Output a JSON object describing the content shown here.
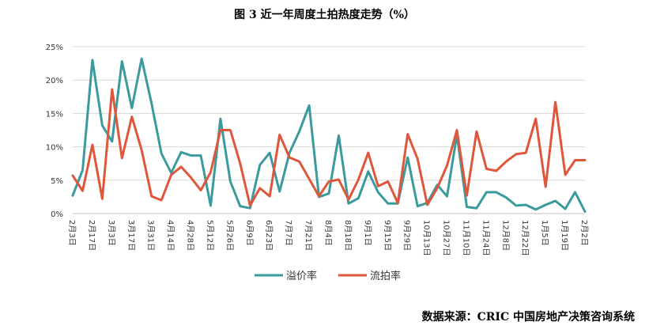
{
  "chart_data": {
    "type": "line",
    "title": "图 3 近一年周度土拍热度走势（%）",
    "xlabel": "",
    "ylabel": "",
    "ylim": [
      0,
      25
    ],
    "yticks": [
      "0%",
      "5%",
      "10%",
      "15%",
      "20%",
      "25%"
    ],
    "x_tick_labels": [
      "2月3日",
      "2月17日",
      "3月3日",
      "3月17日",
      "3月31日",
      "4月14日",
      "4月28日",
      "5月12日",
      "5月26日",
      "6月9日",
      "6月23日",
      "7月7日",
      "7月21日",
      "8月4日",
      "8月18日",
      "9月1日",
      "9月15日",
      "9月29日",
      "10月13日",
      "10月27日",
      "11月10日",
      "11月24日",
      "12月8日",
      "12月22日",
      "1月5日",
      "1月19日",
      "2月2日"
    ],
    "grid": true,
    "legend": "bottom-center",
    "series": [
      {
        "name": "溢价率",
        "color": "#3a9a9c",
        "values": [
          2.7,
          6.5,
          23.0,
          13.2,
          10.8,
          22.8,
          15.8,
          23.2,
          16.5,
          9.0,
          6.1,
          9.2,
          8.7,
          8.7,
          1.2,
          14.2,
          4.8,
          1.1,
          0.8,
          7.3,
          9.1,
          3.3,
          9.1,
          12.3,
          16.2,
          2.5,
          3.0,
          11.7,
          1.5,
          2.3,
          6.3,
          3.2,
          1.5,
          1.5,
          8.4,
          1.1,
          1.6,
          4.3,
          2.6,
          11.8,
          1.0,
          0.8,
          3.2,
          3.2,
          2.4,
          1.2,
          1.3,
          0.6,
          1.3,
          1.9,
          0.7,
          3.2,
          0.3
        ]
      },
      {
        "name": "流拍率",
        "color": "#e0563b",
        "values": [
          5.7,
          3.4,
          10.3,
          2.2,
          18.6,
          8.3,
          14.5,
          9.5,
          2.6,
          2.0,
          5.8,
          7.0,
          5.4,
          3.5,
          6.2,
          12.5,
          12.5,
          7.5,
          1.2,
          3.8,
          2.6,
          11.8,
          8.4,
          7.8,
          5.2,
          2.6,
          4.8,
          5.1,
          2.1,
          5.1,
          9.1,
          4.1,
          4.8,
          1.6,
          11.9,
          8.2,
          1.3,
          3.8,
          7.2,
          12.5,
          2.7,
          12.3,
          6.7,
          6.4,
          7.8,
          8.9,
          9.1,
          14.2,
          4.0,
          16.7,
          5.8,
          8.0,
          8.0
        ]
      }
    ]
  },
  "source_text": "数据来源：CRIC 中国房地产决策咨询系统"
}
